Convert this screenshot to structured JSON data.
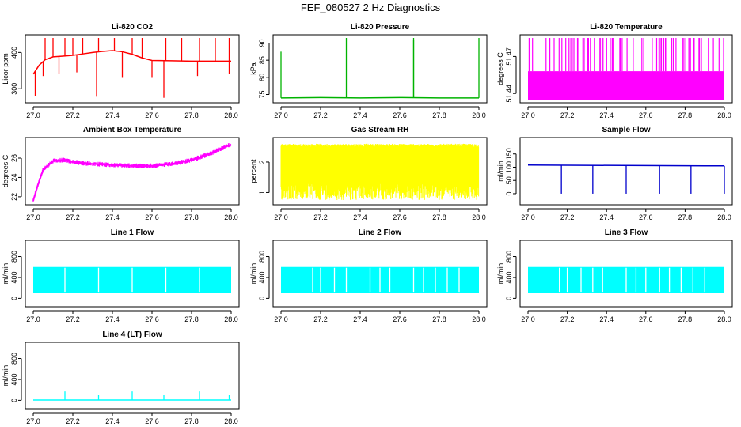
{
  "page": {
    "title": "FEF_080527  2 Hz Diagnostics"
  },
  "chart_data": [
    {
      "type": "line",
      "title": "Li-820 CO2",
      "ylabel": "Licor ppm",
      "color": "#ff0000",
      "xlim": [
        27.0,
        28.0
      ],
      "ylim": [
        270,
        440
      ],
      "yticks": [
        300,
        400
      ],
      "xticks": [
        "27.0",
        "27.2",
        "27.4",
        "27.6",
        "27.8",
        "28.0"
      ],
      "series": [
        {
          "x": [
            27.0,
            27.03,
            27.06,
            27.1,
            27.15,
            27.2,
            27.25,
            27.3,
            27.35,
            27.4,
            27.45,
            27.5,
            27.55,
            27.6,
            27.7,
            27.8,
            27.9,
            28.0
          ],
          "values": [
            340,
            365,
            380,
            388,
            390,
            392,
            396,
            400,
            403,
            405,
            402,
            395,
            385,
            378,
            377,
            376,
            376,
            376
          ]
        }
      ],
      "spikes": [
        {
          "x": 27.06,
          "v": 440
        },
        {
          "x": 27.1,
          "v": 440
        },
        {
          "x": 27.16,
          "v": 440
        },
        {
          "x": 27.2,
          "v": 440
        },
        {
          "x": 27.25,
          "v": 440
        },
        {
          "x": 27.33,
          "v": 440
        },
        {
          "x": 27.41,
          "v": 440
        },
        {
          "x": 27.5,
          "v": 440
        },
        {
          "x": 27.55,
          "v": 440
        },
        {
          "x": 27.67,
          "v": 440
        },
        {
          "x": 27.75,
          "v": 440
        },
        {
          "x": 27.84,
          "v": 440
        },
        {
          "x": 27.92,
          "v": 440
        },
        {
          "x": 27.99,
          "v": 440
        },
        {
          "x": 27.01,
          "v": 280
        },
        {
          "x": 27.05,
          "v": 335
        },
        {
          "x": 27.13,
          "v": 340
        },
        {
          "x": 27.22,
          "v": 345
        },
        {
          "x": 27.32,
          "v": 278
        },
        {
          "x": 27.45,
          "v": 330
        },
        {
          "x": 27.6,
          "v": 330
        },
        {
          "x": 27.66,
          "v": 275
        },
        {
          "x": 27.83,
          "v": 335
        },
        {
          "x": 27.99,
          "v": 340
        }
      ]
    },
    {
      "type": "line",
      "title": "Li-820 Pressure",
      "ylabel": "kPa",
      "color": "#00b300",
      "xlim": [
        27.0,
        28.0
      ],
      "ylim": [
        73.5,
        91.5
      ],
      "yticks": [
        75,
        80,
        85,
        90
      ],
      "xticks": [
        "27.0",
        "27.2",
        "27.4",
        "27.6",
        "27.8",
        "28.0"
      ],
      "series": [
        {
          "x": [
            27.0,
            27.2,
            27.4,
            27.6,
            27.8,
            28.0
          ],
          "values": [
            74.0,
            74.1,
            74.0,
            74.1,
            74.0,
            74.0
          ]
        }
      ],
      "spikes": [
        {
          "x": 27.0,
          "v": 87.5
        },
        {
          "x": 27.33,
          "v": 91.5
        },
        {
          "x": 27.67,
          "v": 91.5
        },
        {
          "x": 27.67,
          "v": 91.0
        },
        {
          "x": 28.0,
          "v": 91.5
        }
      ]
    },
    {
      "type": "area",
      "title": "Li-820 Temperature",
      "ylabel": "degrees C",
      "color": "#ff00ff",
      "xlim": [
        27.0,
        28.0
      ],
      "ylim": [
        51.435,
        51.485
      ],
      "yticks": [
        51.44,
        51.47
      ],
      "xticks": [
        "27.0",
        "27.2",
        "27.4",
        "27.6",
        "27.8",
        "28.0"
      ],
      "band": [
        51.435,
        51.458
      ],
      "upper_level": 51.485
    },
    {
      "type": "line",
      "title": "Ambient Box Temperature",
      "ylabel": "degrees C",
      "color": "#ff00ff",
      "xlim": [
        27.0,
        28.0
      ],
      "ylim": [
        21.5,
        27.8
      ],
      "yticks": [
        22,
        24,
        26
      ],
      "xticks": [
        "27.0",
        "27.2",
        "27.4",
        "27.6",
        "27.8",
        "28.0"
      ],
      "series": [
        {
          "x": [
            27.0,
            27.02,
            27.05,
            27.1,
            27.15,
            27.2,
            27.3,
            27.4,
            27.5,
            27.6,
            27.7,
            27.8,
            27.9,
            27.95,
            28.0
          ],
          "values": [
            21.6,
            23.0,
            24.8,
            25.7,
            25.8,
            25.6,
            25.4,
            25.3,
            25.2,
            25.2,
            25.4,
            25.8,
            26.5,
            27.0,
            27.4
          ]
        }
      ],
      "noise": 0.25
    },
    {
      "type": "area",
      "title": "Gas Stream RH",
      "ylabel": "percent",
      "color": "#ffff00",
      "xlim": [
        27.0,
        28.0
      ],
      "ylim": [
        0.7,
        2.7
      ],
      "yticks": [
        1.0,
        2.0
      ],
      "xticks": [
        "27.0",
        "27.2",
        "27.4",
        "27.6",
        "27.8",
        "28.0"
      ],
      "band": [
        1.3,
        2.5
      ],
      "envelope": [
        0.75,
        2.6
      ]
    },
    {
      "type": "line",
      "title": "Sample Flow",
      "ylabel": "ml/min",
      "color": "#0000cc",
      "xlim": [
        27.0,
        28.0
      ],
      "ylim": [
        -30,
        200
      ],
      "yticks": [
        0,
        50,
        100,
        150
      ],
      "xticks": [
        "27.0",
        "27.2",
        "27.4",
        "27.6",
        "27.8",
        "28.0"
      ],
      "series": [
        {
          "x": [
            27.0,
            28.0
          ],
          "values": [
            108,
            105
          ]
        }
      ],
      "spikes": [
        {
          "x": 27.17,
          "v": 0
        },
        {
          "x": 27.33,
          "v": 0
        },
        {
          "x": 27.5,
          "v": 0
        },
        {
          "x": 27.67,
          "v": 0
        },
        {
          "x": 27.83,
          "v": 0
        },
        {
          "x": 28.0,
          "v": 0
        }
      ]
    },
    {
      "type": "area",
      "title": "Line 1 Flow",
      "ylabel": "ml/min",
      "color": "#00ffff",
      "xlim": [
        27.0,
        28.0
      ],
      "ylim": [
        -100,
        1050
      ],
      "yticks": [
        0,
        400,
        800
      ],
      "xticks": [
        "27.0",
        "27.2",
        "27.4",
        "27.6",
        "27.8",
        "28.0"
      ],
      "band": [
        110,
        600
      ],
      "gaps": [
        27.16,
        27.33,
        27.5,
        27.67,
        27.84
      ]
    },
    {
      "type": "area",
      "title": "Line 2 Flow",
      "ylabel": "ml/min",
      "color": "#00ffff",
      "xlim": [
        27.0,
        28.0
      ],
      "ylim": [
        -100,
        1050
      ],
      "yticks": [
        0,
        400,
        800
      ],
      "xticks": [
        "27.0",
        "27.2",
        "27.4",
        "27.6",
        "27.8",
        "28.0"
      ],
      "band": [
        110,
        600
      ],
      "gaps": [
        27.16,
        27.2,
        27.27,
        27.33,
        27.45,
        27.5,
        27.55,
        27.67,
        27.72,
        27.78,
        27.84,
        27.9
      ]
    },
    {
      "type": "area",
      "title": "Line 3 Flow",
      "ylabel": "ml/min",
      "color": "#00ffff",
      "xlim": [
        27.0,
        28.0
      ],
      "ylim": [
        -100,
        1050
      ],
      "yticks": [
        0,
        400,
        800
      ],
      "xticks": [
        "27.0",
        "27.2",
        "27.4",
        "27.6",
        "27.8",
        "28.0"
      ],
      "band": [
        110,
        600
      ],
      "gaps": [
        27.16,
        27.2,
        27.27,
        27.33,
        27.38,
        27.5,
        27.55,
        27.6,
        27.67,
        27.72,
        27.78,
        27.84,
        27.9
      ]
    },
    {
      "type": "line",
      "title": "Line 4 (LT) Flow",
      "ylabel": "ml/min",
      "color": "#00ffff",
      "xlim": [
        27.0,
        28.0
      ],
      "ylim": [
        -100,
        1050
      ],
      "yticks": [
        0,
        400,
        800
      ],
      "xticks": [
        "27.0",
        "27.2",
        "27.4",
        "27.6",
        "27.8",
        "28.0"
      ],
      "series": [
        {
          "x": [
            27.0,
            28.0
          ],
          "values": [
            5,
            5
          ]
        }
      ],
      "spikes": [
        {
          "x": 27.16,
          "v": 170
        },
        {
          "x": 27.33,
          "v": 110
        },
        {
          "x": 27.5,
          "v": 170
        },
        {
          "x": 27.66,
          "v": 110
        },
        {
          "x": 27.84,
          "v": 170
        },
        {
          "x": 27.99,
          "v": 110
        }
      ]
    }
  ]
}
